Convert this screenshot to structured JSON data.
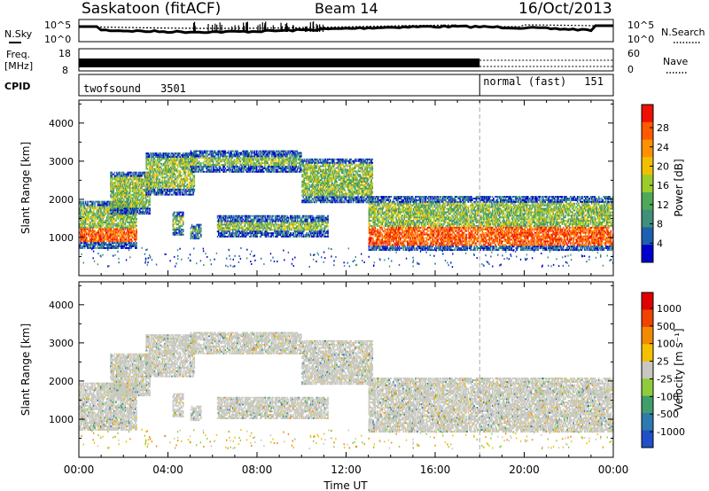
{
  "header": {
    "station": "Saskatoon (fitACF)",
    "beam": "Beam 14",
    "date": "16/Oct/2013"
  },
  "noise_panel": {
    "left_label": "N.Sky",
    "right_label": "N.Search",
    "ticks_left": [
      "10^5",
      "10^0"
    ],
    "ticks_right": [
      "10^5",
      "10^0"
    ]
  },
  "freq_panel": {
    "left_label_1": "Freq.",
    "left_label_2": "[MHz]",
    "ticks_left": [
      "18",
      "8"
    ],
    "right_label": "Nave",
    "ticks_right": [
      "60",
      "0"
    ]
  },
  "cpid_panel": {
    "label": "CPID",
    "programs": [
      {
        "name": "twofsound",
        "id": "3501",
        "start_hour": 0,
        "end_hour": 18
      },
      {
        "name": "normal (fast)",
        "id": "151",
        "start_hour": 18,
        "end_hour": 24
      }
    ]
  },
  "chart_data": [
    {
      "type": "heatmap",
      "name": "power",
      "ylabel": "Slant Range [km]",
      "xlabel": "",
      "xlim": [
        0,
        24
      ],
      "ylim": [
        0,
        4600
      ],
      "yticks": [
        "1000",
        "2000",
        "3000",
        "4000"
      ],
      "colorbar": {
        "label": "Power [dB]",
        "ticks": [
          "4",
          "8",
          "12",
          "16",
          "20",
          "24",
          "28"
        ],
        "colors": [
          "#0000cc",
          "#1d5fb0",
          "#3f8f7a",
          "#4fa85a",
          "#9ccc2a",
          "#f0c000",
          "#ff9000",
          "#ff5a00",
          "#ee1000"
        ]
      },
      "bands": [
        {
          "t0": 0.0,
          "t1": 2.6,
          "r0": 700,
          "r1": 1950,
          "core_lo": 850,
          "core_hi": 1200
        },
        {
          "t0": 1.4,
          "t1": 3.2,
          "r0": 1600,
          "r1": 2700,
          "core_lo": 0,
          "core_hi": 0
        },
        {
          "t0": 3.0,
          "t1": 5.2,
          "r0": 2100,
          "r1": 3200,
          "core_lo": 0,
          "core_hi": 0
        },
        {
          "t0": 5.0,
          "t1": 10.0,
          "r0": 2700,
          "r1": 3250,
          "core_lo": 0,
          "core_hi": 0
        },
        {
          "t0": 10.0,
          "t1": 13.2,
          "r0": 1900,
          "r1": 3050,
          "core_lo": 0,
          "core_hi": 0
        },
        {
          "t0": 6.2,
          "t1": 11.2,
          "r0": 1000,
          "r1": 1550,
          "core_lo": 0,
          "core_hi": 0
        },
        {
          "t0": 4.2,
          "t1": 4.7,
          "r0": 1050,
          "r1": 1650,
          "core_lo": 0,
          "core_hi": 0
        },
        {
          "t0": 5.0,
          "t1": 5.5,
          "r0": 950,
          "r1": 1350,
          "core_lo": 0,
          "core_hi": 0
        },
        {
          "t0": 13.0,
          "t1": 24.0,
          "r0": 650,
          "r1": 2050,
          "core_lo": 750,
          "core_hi": 1250
        }
      ]
    },
    {
      "type": "heatmap",
      "name": "velocity",
      "ylabel": "Slant Range [km]",
      "xlabel": "Time UT",
      "xlim": [
        0,
        24
      ],
      "ylim": [
        0,
        4600
      ],
      "yticks": [
        "1000",
        "2000",
        "3000",
        "4000"
      ],
      "xticks": [
        "00:00",
        "04:00",
        "08:00",
        "12:00",
        "16:00",
        "20:00",
        "00:00"
      ],
      "colorbar": {
        "label": "Velocity [m s^-1]",
        "ticks": [
          "1000",
          "500",
          "100",
          "25",
          "-25",
          "-100",
          "-500",
          "-1000"
        ],
        "colors": [
          "#2050c8",
          "#2d7ab0",
          "#3f9e6a",
          "#8fcc3c",
          "#c8c8c0",
          "#f5c000",
          "#f08a00",
          "#ee4400",
          "#e00000"
        ]
      }
    }
  ]
}
